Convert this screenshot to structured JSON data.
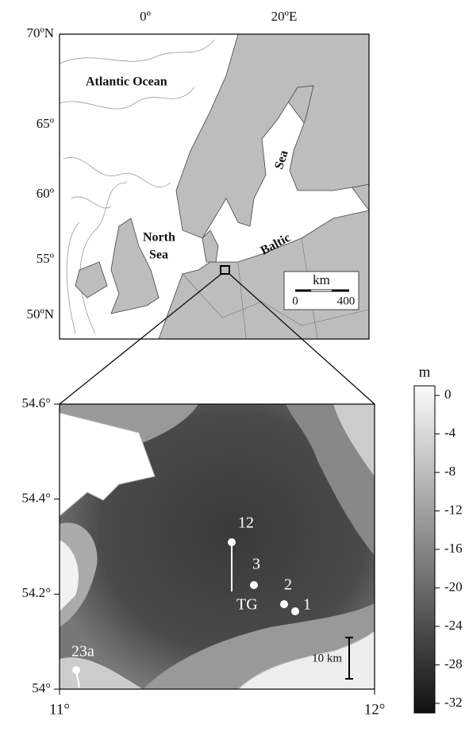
{
  "upper_map": {
    "lat_labels": [
      "70ºN",
      "65º",
      "60º",
      "55º",
      "50ºN"
    ],
    "lon_labels": [
      "0º",
      "20ºE"
    ],
    "place_labels": [
      "Atlantic Ocean",
      "North",
      "Sea",
      "Baltic",
      "Sea"
    ],
    "scale_bar": {
      "unit": "km",
      "labels": [
        "0",
        "400"
      ]
    }
  },
  "lower_map": {
    "lat_range": [
      54,
      54.6
    ],
    "lat_ticks": [
      {
        "value": 54.6,
        "label": "54.6°"
      },
      {
        "value": 54.4,
        "label": "54.4°"
      },
      {
        "value": 54.2,
        "label": "54.2°"
      },
      {
        "value": 54,
        "label": "54°"
      }
    ],
    "lon_range": [
      11,
      12
    ],
    "lon_ticks": [
      {
        "value": 11,
        "label": "11°"
      },
      {
        "value": 12,
        "label": "12°"
      }
    ],
    "stations": [
      "12",
      "3",
      "TG",
      "2",
      "1",
      "23a"
    ],
    "scale_bar": "10 km"
  },
  "colorbar": {
    "unit": "m",
    "range": [
      -33,
      1
    ],
    "ticks": [
      0,
      -4,
      -8,
      -12,
      -16,
      -20,
      -24,
      -28,
      -32
    ]
  }
}
